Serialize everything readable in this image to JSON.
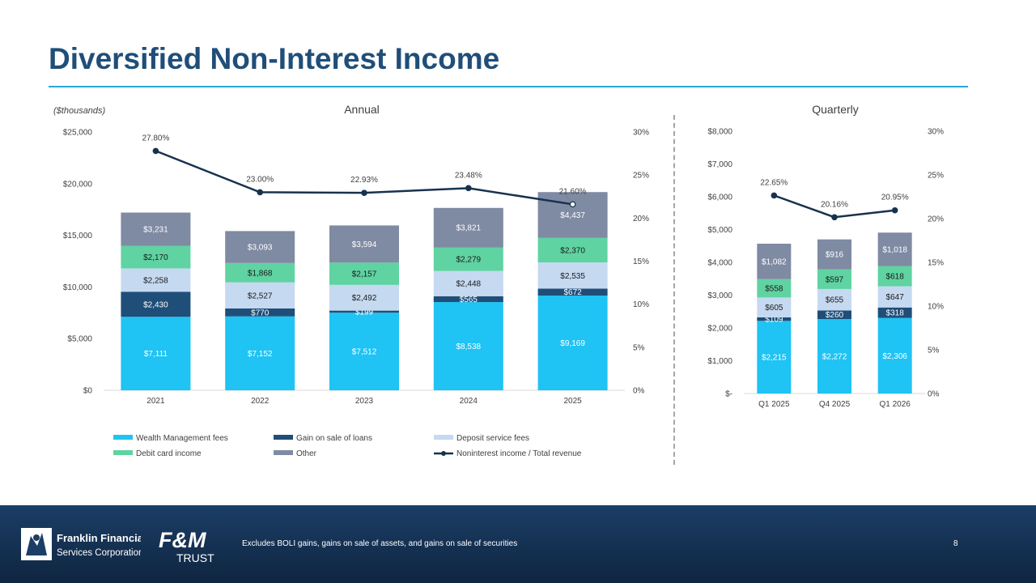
{
  "slide": {
    "title": "Diversified Non-Interest Income",
    "footnote": "Excludes BOLI gains, gains on sale of assets, and gains on sale of securities",
    "page_number": "8",
    "logos": {
      "company_line1": "Franklin Financial",
      "company_line2": "Services Corporation",
      "brand_mark": "F&M",
      "brand_sub": "TRUST"
    }
  },
  "colors": {
    "wealth": "#1fc3f4",
    "gain": "#1f4e79",
    "deposit": "#c5d9f1",
    "debit": "#5fd3a1",
    "other": "#7f8aa3",
    "ratio_line": "#17324f",
    "title": "#1f4e79",
    "accent_rule": "#29a8d8"
  },
  "chart_data": [
    {
      "type": "bar",
      "subtype": "stacked-with-line",
      "title": "Annual",
      "unit_note": "($thousands)",
      "categories": [
        "2021",
        "2022",
        "2023",
        "2024",
        "2025"
      ],
      "series": [
        {
          "name": "Wealth Management fees",
          "key": "wealth",
          "values": [
            7111,
            7152,
            7512,
            8538,
            9169
          ],
          "labels": [
            "$7,111",
            "$7,152",
            "$7,512",
            "$8,538",
            "$9,169"
          ]
        },
        {
          "name": "Gain on sale of loans",
          "key": "gain",
          "values": [
            2430,
            770,
            199,
            565,
            672
          ],
          "labels": [
            "$2,430",
            "$770",
            "$199",
            "$565",
            "$672"
          ]
        },
        {
          "name": "Deposit service fees",
          "key": "deposit",
          "values": [
            2258,
            2527,
            2492,
            2448,
            2535
          ],
          "labels": [
            "$2,258",
            "$2,527",
            "$2,492",
            "$2,448",
            "$2,535"
          ]
        },
        {
          "name": "Debit card income",
          "key": "debit",
          "values": [
            2170,
            1868,
            2157,
            2279,
            2370
          ],
          "labels": [
            "$2,170",
            "$1,868",
            "$2,157",
            "$2,279",
            "$2,370"
          ]
        },
        {
          "name": "Other",
          "key": "other",
          "values": [
            3231,
            3093,
            3594,
            3821,
            4437
          ],
          "labels": [
            "$3,231",
            "$3,093",
            "$3,594",
            "$3,821",
            "$4,437"
          ]
        }
      ],
      "line": {
        "name": "Noninterest income / Total revenue",
        "values": [
          27.8,
          23.0,
          22.93,
          23.48,
          21.6
        ],
        "labels": [
          "27.80%",
          "23.00%",
          "22.93%",
          "23.48%",
          "21.60%"
        ]
      },
      "y_left": {
        "min": 0,
        "max": 25000,
        "ticks": [
          0,
          5000,
          10000,
          15000,
          20000,
          25000
        ],
        "tick_labels": [
          "$0",
          "$5,000",
          "$10,000",
          "$15,000",
          "$20,000",
          "$25,000"
        ]
      },
      "y_right": {
        "min": 0,
        "max": 30,
        "ticks": [
          0,
          5,
          10,
          15,
          20,
          25,
          30
        ],
        "tick_labels": [
          "0%",
          "5%",
          "10%",
          "15%",
          "20%",
          "25%",
          "30%"
        ]
      },
      "grid": false,
      "legend": "bottom"
    },
    {
      "type": "bar",
      "subtype": "stacked-with-line",
      "title": "Quarterly",
      "categories": [
        "Q1 2025",
        "Q4 2025",
        "Q1 2026"
      ],
      "series": [
        {
          "name": "Wealth Management fees",
          "key": "wealth",
          "values": [
            2215,
            2272,
            2306
          ],
          "labels": [
            "$2,215",
            "$2,272",
            "$2,306"
          ]
        },
        {
          "name": "Gain on sale of loans",
          "key": "gain",
          "values": [
            109,
            260,
            318
          ],
          "labels": [
            "$109",
            "$260",
            "$318"
          ]
        },
        {
          "name": "Deposit service fees",
          "key": "deposit",
          "values": [
            605,
            655,
            647
          ],
          "labels": [
            "$605",
            "$655",
            "$647"
          ]
        },
        {
          "name": "Debit card income",
          "key": "debit",
          "values": [
            558,
            597,
            618
          ],
          "labels": [
            "$558",
            "$597",
            "$618"
          ]
        },
        {
          "name": "Other",
          "key": "other",
          "values": [
            1082,
            916,
            1018
          ],
          "labels": [
            "$1,082",
            "$916",
            "$1,018"
          ]
        }
      ],
      "line": {
        "name": "Noninterest income / Total revenue",
        "values": [
          22.65,
          20.16,
          20.95
        ],
        "labels": [
          "22.65%",
          "20.16%",
          "20.95%"
        ]
      },
      "y_left": {
        "min": 0,
        "max": 8000,
        "ticks": [
          0,
          1000,
          2000,
          3000,
          4000,
          5000,
          6000,
          7000,
          8000
        ],
        "tick_labels": [
          "$-",
          "$1,000",
          "$2,000",
          "$3,000",
          "$4,000",
          "$5,000",
          "$6,000",
          "$7,000",
          "$8,000"
        ]
      },
      "y_right": {
        "min": 0,
        "max": 30,
        "ticks": [
          0,
          5,
          10,
          15,
          20,
          25,
          30
        ],
        "tick_labels": [
          "0%",
          "5%",
          "10%",
          "15%",
          "20%",
          "25%",
          "30%"
        ]
      },
      "grid": false,
      "legend": "none"
    }
  ]
}
